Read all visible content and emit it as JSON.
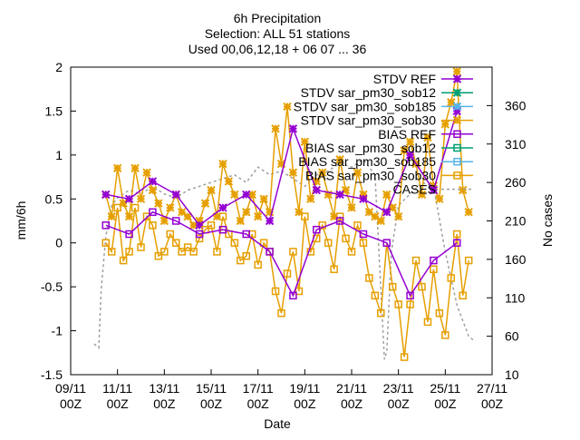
{
  "chart_data": {
    "type": "line",
    "title_lines": [
      "6h Precipitation",
      "Selection: ALL      51 stations",
      "Used 00,06,12,18 + 06 07 ... 36"
    ],
    "xlabel": "Date",
    "ylabel": "mm/6h",
    "y2label": "No cases",
    "ylim": [
      -1.5,
      2.0
    ],
    "y2lim": [
      10,
      410
    ],
    "xlim": [
      "09/11 00Z",
      "27/11 00Z"
    ],
    "x_ticks": [
      "09/11 00Z",
      "11/11 00Z",
      "13/11 00Z",
      "15/11 00Z",
      "17/11 00Z",
      "19/11 00Z",
      "21/11 00Z",
      "23/11 00Z",
      "25/11 00Z",
      "27/11 00Z"
    ],
    "y_ticks": [
      "-1.5",
      "-1",
      "-0.5",
      "0",
      "0.5",
      "1",
      "1.5",
      "2"
    ],
    "y2_ticks": [
      "10",
      "60",
      "110",
      "160",
      "210",
      "260",
      "310",
      "360"
    ],
    "legend_position": "top-right",
    "legend": [
      {
        "label": "STDV REF",
        "color": "#9400d3",
        "marker": "star"
      },
      {
        "label": "STDV sar_pm30_sob12",
        "color": "#009e73",
        "marker": "star"
      },
      {
        "label": "STDV sar_pm30_sob185",
        "color": "#56b4e9",
        "marker": "star"
      },
      {
        "label": "STDV sar_pm30_sob30",
        "color": "#e69f00",
        "marker": "star"
      },
      {
        "label": "BIAS REF",
        "color": "#9400d3",
        "marker": "square"
      },
      {
        "label": "BIAS sar_pm30_sob12",
        "color": "#009e73",
        "marker": "square"
      },
      {
        "label": "BIAS sar_pm30_sob185",
        "color": "#56b4e9",
        "marker": "square"
      },
      {
        "label": "BIAS sar_pm30_sob30",
        "color": "#e69f00",
        "marker": "square"
      },
      {
        "label": "CASES",
        "color": "#a0a0a0",
        "marker": "dashed"
      }
    ],
    "series": [
      {
        "name": "STDV sar_pm30_sob30",
        "axis": "y",
        "color": "#e69f00",
        "x": [
          10.5,
          10.75,
          11.0,
          11.25,
          11.5,
          11.75,
          12.0,
          12.25,
          12.5,
          12.75,
          13.0,
          13.25,
          13.5,
          13.75,
          14.0,
          14.25,
          14.5,
          14.75,
          15.0,
          15.25,
          15.5,
          15.75,
          16.0,
          16.25,
          16.5,
          16.75,
          17.0,
          17.25,
          17.5,
          17.75,
          18.0,
          18.25,
          18.5,
          18.75,
          19.0,
          19.25,
          19.5,
          19.75,
          20.0,
          20.25,
          20.5,
          20.75,
          21.0,
          21.25,
          21.5,
          21.75,
          22.0,
          22.25,
          22.5,
          22.75,
          23.0,
          23.25,
          23.5,
          23.75,
          24.0,
          24.25,
          24.5,
          24.75,
          25.0,
          25.25,
          25.5,
          25.75,
          26.0
        ],
        "values": [
          0.55,
          0.3,
          0.85,
          0.45,
          0.3,
          0.85,
          0.5,
          0.8,
          0.6,
          0.45,
          0.25,
          0.4,
          0.55,
          0.35,
          0.3,
          0.2,
          0.25,
          0.45,
          0.6,
          0.3,
          0.9,
          0.7,
          0.55,
          0.25,
          0.35,
          0.55,
          0.3,
          0.5,
          0.35,
          1.3,
          0.9,
          1.55,
          0.8,
          0.35,
          1.15,
          0.5,
          0.7,
          0.8,
          0.55,
          0.3,
          0.95,
          0.6,
          0.4,
          0.8,
          0.55,
          0.35,
          0.3,
          0.25,
          0.55,
          0.4,
          0.3,
          1.05,
          1.15,
          0.9,
          0.55,
          1.2,
          0.65,
          0.5,
          1.35,
          1.6,
          1.95,
          0.6,
          0.35
        ]
      },
      {
        "name": "STDV REF",
        "axis": "y",
        "color": "#9400d3",
        "x": [
          10.5,
          11.5,
          12.5,
          13.5,
          14.5,
          15.5,
          16.5,
          17.5,
          18.5,
          19.5,
          20.5,
          21.5,
          22.5,
          23.5,
          24.5,
          25.5
        ],
        "values": [
          0.55,
          0.5,
          0.7,
          0.55,
          0.2,
          0.4,
          0.55,
          0.25,
          1.3,
          0.6,
          0.55,
          0.5,
          0.35,
          1.0,
          0.6,
          1.5
        ]
      },
      {
        "name": "BIAS sar_pm30_sob30",
        "axis": "y",
        "color": "#e69f00",
        "x": [
          10.5,
          10.75,
          11.0,
          11.25,
          11.5,
          11.75,
          12.0,
          12.25,
          12.5,
          12.75,
          13.0,
          13.25,
          13.5,
          13.75,
          14.0,
          14.25,
          14.5,
          14.75,
          15.0,
          15.25,
          15.5,
          15.75,
          16.0,
          16.25,
          16.5,
          16.75,
          17.0,
          17.25,
          17.5,
          17.75,
          18.0,
          18.25,
          18.5,
          18.75,
          19.0,
          19.25,
          19.5,
          19.75,
          20.0,
          20.25,
          20.5,
          20.75,
          21.0,
          21.25,
          21.5,
          21.75,
          22.0,
          22.25,
          22.5,
          22.75,
          23.0,
          23.25,
          23.5,
          23.75,
          24.0,
          24.25,
          24.5,
          24.75,
          25.0,
          25.25,
          25.5,
          25.75,
          26.0
        ],
        "values": [
          0.0,
          -0.1,
          0.4,
          -0.2,
          -0.1,
          0.4,
          -0.05,
          0.3,
          0.2,
          -0.15,
          -0.1,
          0.1,
          0.0,
          -0.1,
          -0.05,
          -0.1,
          0.05,
          0.15,
          0.2,
          -0.1,
          0.3,
          0.1,
          0.0,
          -0.2,
          -0.15,
          0.1,
          -0.25,
          0.0,
          -0.1,
          -0.55,
          -0.8,
          -0.35,
          -0.1,
          -0.55,
          0.3,
          -0.1,
          0.05,
          0.2,
          0.0,
          -0.3,
          0.3,
          0.05,
          -0.1,
          0.2,
          0.0,
          -0.4,
          -0.6,
          -0.8,
          0.0,
          -0.5,
          -0.7,
          -1.3,
          -0.7,
          -0.2,
          -0.5,
          -0.9,
          -0.3,
          -0.8,
          -1.05,
          -0.4,
          0.1,
          -0.6,
          -0.2
        ]
      },
      {
        "name": "BIAS REF",
        "axis": "y",
        "color": "#9400d3",
        "x": [
          10.5,
          11.5,
          12.5,
          13.5,
          14.5,
          15.5,
          16.5,
          17.5,
          18.5,
          19.5,
          20.5,
          21.5,
          22.5,
          23.5,
          24.5,
          25.5
        ],
        "values": [
          0.2,
          0.1,
          0.35,
          0.25,
          0.1,
          0.15,
          0.1,
          -0.1,
          -0.6,
          0.15,
          0.25,
          0.1,
          0.0,
          -0.6,
          -0.2,
          0.0
        ]
      },
      {
        "name": "CASES",
        "axis": "y2",
        "color": "#a0a0a0",
        "dashed": true,
        "x": [
          10.0,
          10.2,
          10.3,
          10.5,
          10.75,
          11.0,
          11.5,
          12.0,
          12.5,
          13.0,
          13.5,
          14.0,
          14.5,
          15.0,
          15.5,
          16.0,
          16.5,
          17.0,
          17.5,
          18.0,
          18.5,
          19.0,
          19.5,
          20.0,
          20.5,
          21.0,
          21.5,
          22.0,
          22.4,
          22.5,
          22.7,
          23.0,
          23.5,
          24.0,
          24.5,
          25.0,
          25.5,
          26.0,
          26.2
        ],
        "values": [
          50,
          45,
          120,
          190,
          230,
          240,
          250,
          245,
          255,
          245,
          240,
          250,
          255,
          260,
          265,
          270,
          260,
          280,
          270,
          275,
          265,
          255,
          270,
          275,
          285,
          280,
          290,
          270,
          30,
          40,
          170,
          230,
          245,
          260,
          255,
          170,
          100,
          60,
          55
        ]
      }
    ]
  }
}
